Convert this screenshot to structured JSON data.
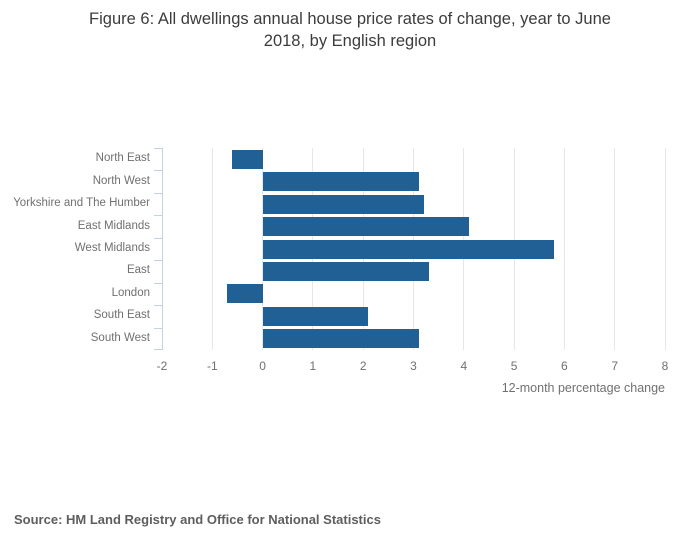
{
  "title_lines": [
    "Figure 6: All dwellings annual house price rates of change, year to June",
    "2018, by English region"
  ],
  "chart_data": {
    "type": "bar",
    "orientation": "horizontal",
    "title": "Figure 6: All dwellings annual house price rates of change, year to June 2018, by English region",
    "categories": [
      "North East",
      "North West",
      "Yorkshire and The Humber",
      "East Midlands",
      "West Midlands",
      "East",
      "London",
      "South East",
      "South West"
    ],
    "values": [
      -0.6,
      3.1,
      3.2,
      4.1,
      5.8,
      3.3,
      -0.7,
      2.1,
      3.1
    ],
    "xlabel": "12-month percentage change",
    "ylabel": "",
    "xlim": [
      -2,
      8
    ],
    "x_ticks": [
      -2,
      -1,
      0,
      1,
      2,
      3,
      4,
      5,
      6,
      7,
      8
    ],
    "grid": "vertical-on",
    "legend": "none",
    "bar_color": "#206095",
    "gridline_color": "#e7e7e7",
    "axis_line_color": "#c4d1e2",
    "tick_label_color": "#707070",
    "title_color": "#3c3c3c"
  },
  "source": "Source: HM Land Registry and Office for National Statistics"
}
